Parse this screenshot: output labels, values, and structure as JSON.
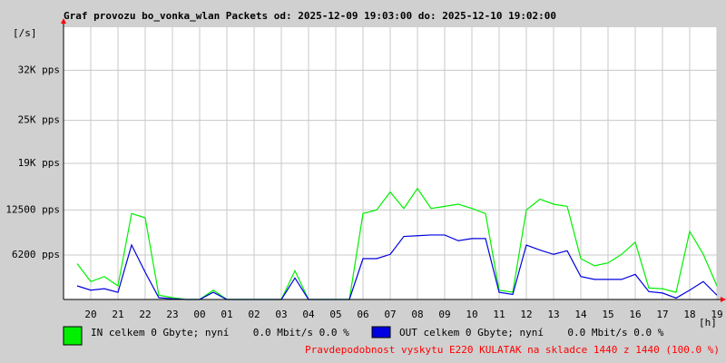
{
  "chart_data": {
    "type": "line",
    "title": "Graf provozu bo_vonka_wlan Packets od: 2025-12-09 19:03:00 do: 2025-12-10 19:02:00",
    "y_unit": "[/s]",
    "x_unit": "[h]",
    "xlim": [
      19,
      43
    ],
    "xticks": [
      20,
      21,
      22,
      23,
      {
        "value": 24,
        "label": "00"
      },
      {
        "value": 25,
        "label": "01"
      },
      {
        "value": 26,
        "label": "02"
      },
      {
        "value": 27,
        "label": "03"
      },
      {
        "value": 28,
        "label": "04"
      },
      {
        "value": 29,
        "label": "05"
      },
      {
        "value": 30,
        "label": "06"
      },
      {
        "value": 31,
        "label": "07"
      },
      {
        "value": 32,
        "label": "08"
      },
      {
        "value": 33,
        "label": "09"
      },
      {
        "value": 34,
        "label": "10"
      },
      {
        "value": 35,
        "label": "11"
      },
      {
        "value": 36,
        "label": "12"
      },
      {
        "value": 37,
        "label": "13"
      },
      {
        "value": 38,
        "label": "14"
      },
      {
        "value": 39,
        "label": "15"
      },
      {
        "value": 40,
        "label": "16"
      },
      {
        "value": 41,
        "label": "17"
      },
      {
        "value": 42,
        "label": "18"
      },
      {
        "value": 43,
        "label": "19"
      }
    ],
    "ylim": [
      0,
      38000
    ],
    "yticks": [
      {
        "value": 6200,
        "label": "6200 pps"
      },
      {
        "value": 12500,
        "label": "12500 pps"
      },
      {
        "value": 19000,
        "label": "19K pps"
      },
      {
        "value": 25000,
        "label": "25K pps"
      },
      {
        "value": 32000,
        "label": "32K pps"
      }
    ],
    "grid": true,
    "x": [
      19.5,
      20,
      20.5,
      21,
      21.5,
      22,
      22.5,
      23,
      23.5,
      24,
      24.5,
      25,
      25.5,
      26,
      26.5,
      27,
      27.5,
      28,
      28.5,
      29,
      29.5,
      30,
      30.5,
      31,
      31.5,
      32,
      32.5,
      33,
      33.5,
      34,
      34.5,
      35,
      35.5,
      36,
      36.5,
      37,
      37.5,
      38,
      38.5,
      39,
      39.5,
      40,
      40.5,
      41,
      41.5,
      42,
      42.5,
      43
    ],
    "series": [
      {
        "name": "IN celkem 0 Gbyte; nyní    0.0 Mbit/s 0.0 %",
        "color": "#00f000",
        "values": [
          5000,
          2500,
          3200,
          1900,
          12000,
          11400,
          600,
          250,
          0,
          0,
          1300,
          0,
          0,
          0,
          0,
          0,
          4000,
          0,
          0,
          0,
          0,
          12000,
          12500,
          15000,
          12700,
          15500,
          12700,
          13000,
          13300,
          12700,
          12000,
          1300,
          1000,
          12500,
          14000,
          13300,
          13000,
          5700,
          4700,
          5100,
          6300,
          8000,
          1600,
          1500,
          1000,
          9500,
          6300,
          1900
        ]
      },
      {
        "name": "OUT celkem 0 Gbyte; nyní    0.0 Mbit/s 0.0 %",
        "color": "#0000e0",
        "values": [
          1900,
          1300,
          1500,
          1000,
          7600,
          3800,
          250,
          100,
          0,
          0,
          1000,
          0,
          0,
          0,
          0,
          0,
          3000,
          0,
          0,
          0,
          0,
          5700,
          5700,
          6300,
          8800,
          8900,
          9000,
          9000,
          8200,
          8500,
          8500,
          1000,
          700,
          7600,
          6900,
          6300,
          6800,
          3200,
          2800,
          2800,
          2800,
          3500,
          1100,
          900,
          200,
          1300,
          2500,
          600
        ]
      }
    ],
    "note": "Pravdepodobnost vyskytu E220 KULATAK na skladce 1440 z 1440 (100.0 %)"
  }
}
